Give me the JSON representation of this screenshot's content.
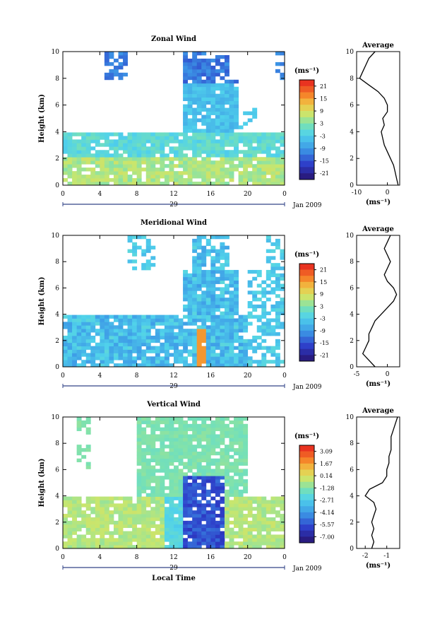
{
  "chart_data": [
    {
      "type": "heatmap",
      "title": "Zonal Wind",
      "xlabel": "",
      "ylabel": "Height (km)",
      "x_ticks": [
        "0",
        "4",
        "8",
        "12",
        "16",
        "20",
        "0"
      ],
      "y_ticks": [
        "0",
        "2",
        "4",
        "6",
        "8",
        "10"
      ],
      "xlim": [
        0,
        24
      ],
      "ylim": [
        0,
        10
      ],
      "date_label": "29",
      "date_suffix": "Jan 2009",
      "colorbar": {
        "unit": "(ms⁻¹)",
        "ticks": [
          "21",
          "15",
          "9",
          "3",
          "-3",
          "-9",
          "-15",
          "-21"
        ],
        "vmin": -24,
        "vmax": 24
      },
      "average": {
        "title": "Average",
        "xlabel": "(ms⁻¹)",
        "x_ticks": [
          "-10",
          "0"
        ],
        "xlim": [
          -10,
          4
        ],
        "profile": [
          [
            3.5,
            0
          ],
          [
            3,
            0.5
          ],
          [
            2.5,
            1
          ],
          [
            2,
            1.5
          ],
          [
            1,
            2
          ],
          [
            0,
            2.5
          ],
          [
            -1,
            3
          ],
          [
            -1.5,
            3.5
          ],
          [
            -2,
            4
          ],
          [
            -1,
            4.5
          ],
          [
            -1.5,
            5
          ],
          [
            0,
            5.5
          ],
          [
            0,
            6
          ],
          [
            -1,
            6.5
          ],
          [
            -3,
            7
          ],
          [
            -6,
            7.5
          ],
          [
            -9,
            8
          ],
          [
            -8,
            8.5
          ],
          [
            -7,
            9
          ],
          [
            -6,
            9.5
          ],
          [
            -4,
            10
          ]
        ]
      }
    },
    {
      "type": "heatmap",
      "title": "Meridional Wind",
      "xlabel": "",
      "ylabel": "Height (km)",
      "x_ticks": [
        "0",
        "4",
        "8",
        "12",
        "16",
        "20",
        "0"
      ],
      "y_ticks": [
        "0",
        "2",
        "4",
        "6",
        "8",
        "10"
      ],
      "xlim": [
        0,
        24
      ],
      "ylim": [
        0,
        10
      ],
      "date_label": "29",
      "date_suffix": "Jan 2009",
      "colorbar": {
        "unit": "(ms⁻¹)",
        "ticks": [
          "21",
          "15",
          "9",
          "3",
          "-3",
          "-9",
          "-15",
          "-21"
        ],
        "vmin": -24,
        "vmax": 24
      },
      "average": {
        "title": "Average",
        "xlabel": "(ms⁻¹)",
        "x_ticks": [
          "-5",
          "0"
        ],
        "xlim": [
          -5,
          2
        ],
        "profile": [
          [
            -2,
            0
          ],
          [
            -3,
            0.5
          ],
          [
            -4,
            1
          ],
          [
            -3.5,
            1.5
          ],
          [
            -3,
            2
          ],
          [
            -3,
            2.5
          ],
          [
            -2.5,
            3
          ],
          [
            -2,
            3.5
          ],
          [
            -1,
            4
          ],
          [
            0,
            4.5
          ],
          [
            1,
            5
          ],
          [
            1.5,
            5.5
          ],
          [
            1,
            6
          ],
          [
            0,
            6.5
          ],
          [
            -0.5,
            7
          ],
          [
            0,
            7.5
          ],
          [
            0.5,
            8
          ],
          [
            0,
            8.5
          ],
          [
            -0.5,
            9
          ],
          [
            0,
            9.5
          ],
          [
            0.5,
            10
          ]
        ]
      }
    },
    {
      "type": "heatmap",
      "title": "Vertical Wind",
      "xlabel": "Local Time",
      "ylabel": "Height (km)",
      "x_ticks": [
        "0",
        "4",
        "8",
        "12",
        "16",
        "20",
        "0"
      ],
      "y_ticks": [
        "0",
        "2",
        "4",
        "6",
        "8",
        "10"
      ],
      "xlim": [
        0,
        24
      ],
      "ylim": [
        0,
        10
      ],
      "date_label": "29",
      "date_suffix": "Jan 2009",
      "colorbar": {
        "unit": "(ms⁻¹)",
        "ticks": [
          "3.09",
          "1.67",
          "0.14",
          "-1.28",
          "-2.71",
          "-4.14",
          "-5.57",
          "-7.00"
        ],
        "vmin": -7.5,
        "vmax": 3.5
      },
      "average": {
        "title": "Average",
        "xlabel": "(ms⁻¹)",
        "x_ticks": [
          "-2",
          "-1"
        ],
        "xlim": [
          -2.4,
          -0.4
        ],
        "profile": [
          [
            -1.7,
            0
          ],
          [
            -1.6,
            0.5
          ],
          [
            -1.7,
            1
          ],
          [
            -1.6,
            1.5
          ],
          [
            -1.7,
            2
          ],
          [
            -1.6,
            2.5
          ],
          [
            -1.5,
            3
          ],
          [
            -1.6,
            3.5
          ],
          [
            -2,
            4
          ],
          [
            -1.8,
            4.5
          ],
          [
            -1.2,
            5
          ],
          [
            -1,
            5.5
          ],
          [
            -1,
            6
          ],
          [
            -0.9,
            6.5
          ],
          [
            -0.9,
            7
          ],
          [
            -0.8,
            7.5
          ],
          [
            -0.8,
            8
          ],
          [
            -0.8,
            8.5
          ],
          [
            -0.7,
            9
          ],
          [
            -0.6,
            9.5
          ],
          [
            -0.5,
            10
          ]
        ]
      }
    }
  ]
}
